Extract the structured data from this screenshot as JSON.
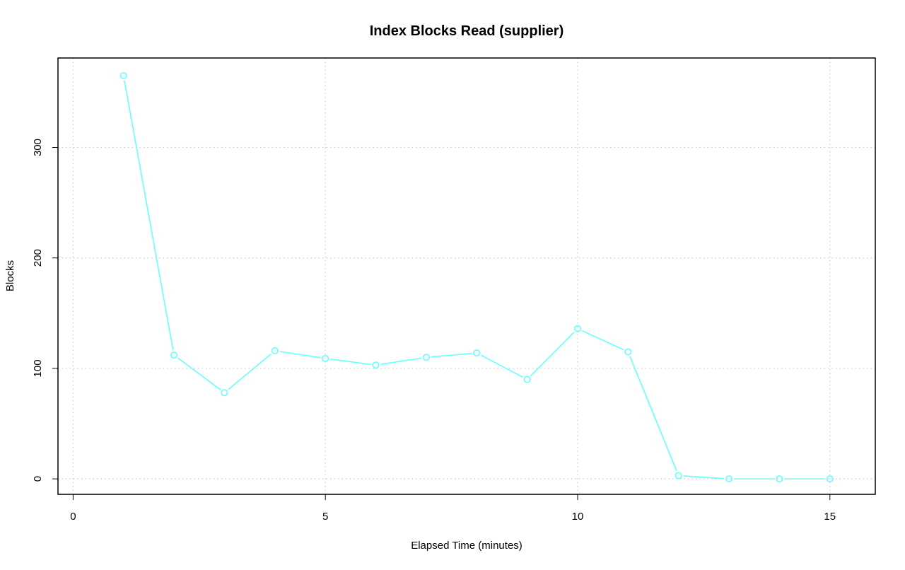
{
  "chart_data": {
    "type": "line",
    "title": "Index Blocks Read (supplier)",
    "xlabel": "Elapsed Time (minutes)",
    "ylabel": "Blocks",
    "xlim": [
      -0.3,
      15.9
    ],
    "ylim": [
      -14,
      381
    ],
    "xticks": [
      0,
      5,
      10,
      15
    ],
    "yticks": [
      0,
      100,
      200,
      300
    ],
    "grid": true,
    "series": [
      {
        "color": "#66ffff",
        "marker": "open-circle",
        "x": [
          1,
          2,
          3,
          4,
          5,
          6,
          7,
          8,
          9,
          10,
          11,
          12,
          13,
          14,
          15
        ],
        "y": [
          365,
          112,
          78,
          116,
          109,
          103,
          110,
          114,
          90,
          136,
          115,
          3,
          0,
          0,
          0
        ]
      }
    ]
  }
}
